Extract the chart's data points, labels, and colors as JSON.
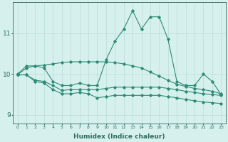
{
  "xlabel": "Humidex (Indice chaleur)",
  "x": [
    0,
    1,
    2,
    3,
    4,
    5,
    6,
    7,
    8,
    9,
    10,
    11,
    12,
    13,
    14,
    15,
    16,
    17,
    18,
    19,
    20,
    21,
    22,
    23
  ],
  "line1": [
    10.0,
    10.2,
    10.2,
    10.15,
    9.82,
    9.72,
    9.72,
    9.78,
    9.72,
    9.72,
    10.35,
    10.8,
    11.1,
    11.55,
    11.1,
    11.4,
    11.4,
    10.85,
    9.82,
    9.72,
    9.72,
    10.0,
    9.82,
    9.5
  ],
  "line2": [
    9.98,
    10.15,
    10.2,
    10.22,
    10.25,
    10.28,
    10.3,
    10.3,
    10.3,
    10.3,
    10.3,
    10.28,
    10.25,
    10.2,
    10.15,
    10.05,
    9.95,
    9.85,
    9.75,
    9.7,
    9.65,
    9.62,
    9.58,
    9.52
  ],
  "line3": [
    9.98,
    9.98,
    9.85,
    9.82,
    9.72,
    9.6,
    9.62,
    9.62,
    9.62,
    9.62,
    9.65,
    9.68,
    9.68,
    9.68,
    9.68,
    9.68,
    9.68,
    9.65,
    9.62,
    9.58,
    9.55,
    9.52,
    9.5,
    9.48
  ],
  "line4": [
    9.98,
    9.98,
    9.82,
    9.78,
    9.62,
    9.52,
    9.52,
    9.55,
    9.52,
    9.42,
    9.45,
    9.48,
    9.48,
    9.48,
    9.48,
    9.48,
    9.48,
    9.45,
    9.42,
    9.38,
    9.35,
    9.32,
    9.3,
    9.28
  ],
  "line_color": "#2e8b74",
  "bg_color": "#d6f0ee",
  "grid_color": "#b8dcd8",
  "axis_color": "#2e6b5e",
  "ylim": [
    8.8,
    11.75
  ],
  "yticks": [
    9,
    10,
    11
  ],
  "xlim": [
    -0.5,
    23.5
  ]
}
